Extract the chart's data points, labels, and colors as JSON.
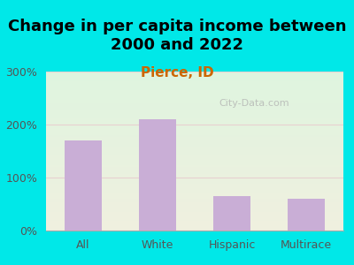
{
  "title": "Change in per capita income between\n2000 and 2022",
  "subtitle": "Pierce, ID",
  "categories": [
    "All",
    "White",
    "Hispanic",
    "Multirace"
  ],
  "values": [
    170,
    210,
    65,
    60
  ],
  "bar_color": "#c9aed6",
  "ylim": [
    0,
    300
  ],
  "yticks": [
    0,
    100,
    200,
    300
  ],
  "ytick_labels": [
    "0%",
    "100%",
    "200%",
    "300%"
  ],
  "background_outer": "#00e8e8",
  "plot_bg_top": "#dff5df",
  "plot_bg_bottom": "#f0f0e0",
  "title_fontsize": 13,
  "subtitle_fontsize": 11,
  "subtitle_color": "#cc6600",
  "watermark": "City-Data.com",
  "grid_color": "#e8d0d0",
  "tick_color": "#555555"
}
